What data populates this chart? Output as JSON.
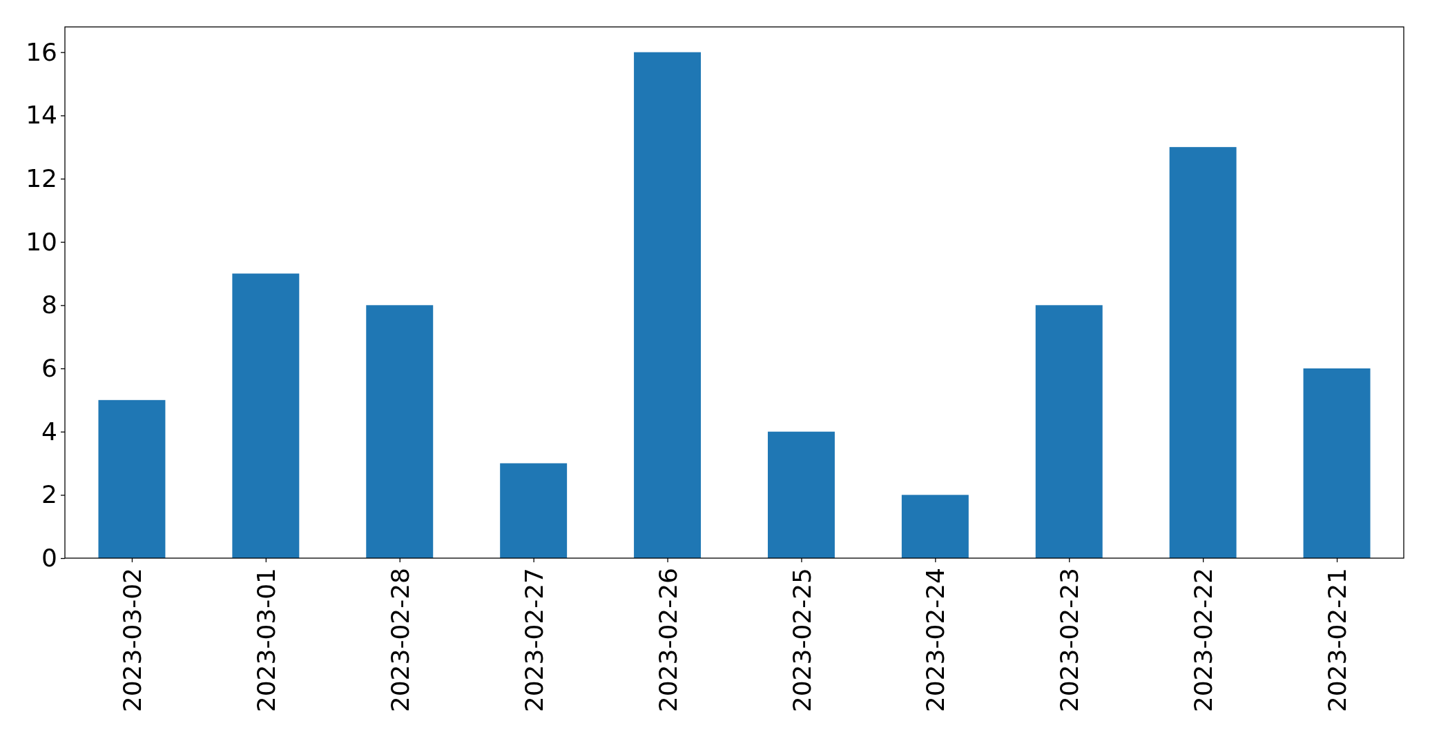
{
  "chart_data": {
    "type": "bar",
    "categories": [
      "2023-03-02",
      "2023-03-01",
      "2023-02-28",
      "2023-02-27",
      "2023-02-26",
      "2023-02-25",
      "2023-02-24",
      "2023-02-23",
      "2023-02-22",
      "2023-02-21"
    ],
    "values": [
      5,
      9,
      8,
      3,
      16,
      4,
      2,
      8,
      13,
      6
    ],
    "color": "#1f77b4",
    "ylim": [
      0,
      16.8
    ],
    "yticks": [
      0,
      2,
      4,
      6,
      8,
      10,
      12,
      14,
      16
    ]
  }
}
